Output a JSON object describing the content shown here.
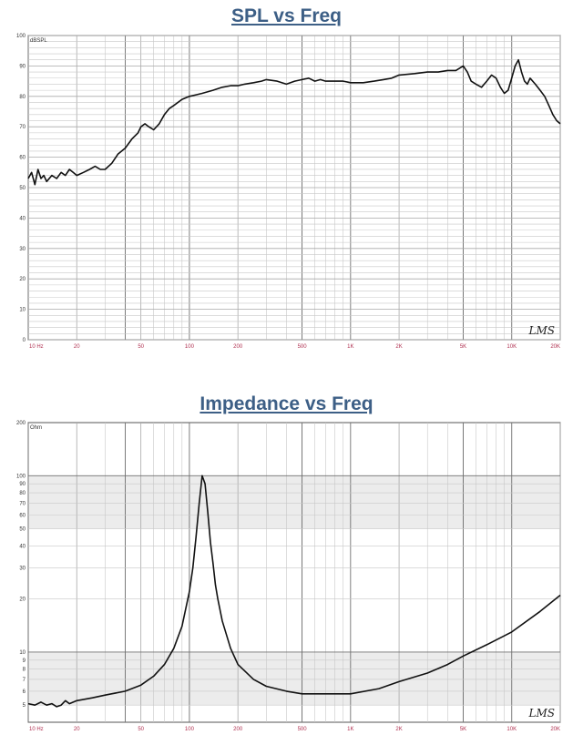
{
  "chart_data": [
    {
      "type": "line",
      "title": "SPL vs Freq",
      "ylabel": "dBSPL",
      "xlabel": "",
      "xscale": "log",
      "xlim": [
        10,
        20000
      ],
      "ylim": [
        0,
        100
      ],
      "grid": true,
      "yticks": [
        0,
        10,
        20,
        30,
        40,
        50,
        60,
        70,
        80,
        90,
        100
      ],
      "ytick_labels": [
        "0",
        "10",
        "20",
        "30",
        "40",
        "50",
        "60",
        "70",
        "80",
        "90",
        "100"
      ],
      "xticks": [
        10,
        20,
        50,
        100,
        200,
        500,
        1000,
        2000,
        5000,
        10000,
        20000
      ],
      "xtick_labels": [
        "10 Hz",
        "20",
        "50",
        "100",
        "200",
        "500",
        "1K",
        "2K",
        "5K",
        "10K",
        "20K"
      ],
      "annotation": "LMS",
      "series": [
        {
          "x": [
            10,
            10.5,
            11,
            11.5,
            12,
            12.5,
            13,
            14,
            15,
            16,
            17,
            18,
            19,
            20,
            22,
            24,
            26,
            28,
            30,
            33,
            36,
            40,
            44,
            48,
            50,
            53,
            56,
            60,
            65,
            70,
            75,
            80,
            90,
            100,
            110,
            120,
            140,
            160,
            180,
            200,
            220,
            250,
            280,
            300,
            350,
            400,
            450,
            500,
            550,
            600,
            650,
            700,
            800,
            900,
            1000,
            1200,
            1400,
            1600,
            1800,
            2000,
            2500,
            3000,
            3500,
            4000,
            4500,
            5000,
            5300,
            5600,
            6000,
            6500,
            7000,
            7500,
            8000,
            8500,
            9000,
            9500,
            10000,
            10500,
            11000,
            11500,
            12000,
            12500,
            13000,
            14000,
            15000,
            16000,
            17000,
            18000,
            19000,
            20000
          ],
          "y": [
            53,
            55,
            51,
            56,
            53,
            54,
            52,
            54,
            53,
            55,
            54,
            56,
            55,
            54,
            55,
            56,
            57,
            56,
            56,
            58,
            61,
            63,
            66,
            68,
            70,
            71,
            70,
            69,
            71,
            74,
            76,
            77,
            79,
            80,
            80.5,
            81,
            82,
            83,
            83.5,
            83.5,
            84,
            84.5,
            85,
            85.5,
            85,
            84,
            85,
            85.5,
            86,
            85,
            85.5,
            85,
            85,
            85,
            84.5,
            84.5,
            85,
            85.5,
            86,
            87,
            87.5,
            88,
            88,
            88.5,
            88.5,
            90,
            88,
            85,
            84,
            83,
            85,
            87,
            86,
            83,
            81,
            82,
            86,
            90,
            92,
            88,
            85,
            84,
            86,
            84,
            82,
            80,
            77,
            74,
            72,
            71
          ]
        }
      ]
    },
    {
      "type": "line",
      "title": "Impedance vs Freq",
      "ylabel": "Ohm",
      "xlabel": "",
      "xscale": "log",
      "yscale": "log",
      "xlim": [
        10,
        20000
      ],
      "ylim": [
        4,
        200
      ],
      "grid": true,
      "yticks": [
        5,
        6,
        7,
        8,
        9,
        10,
        20,
        30,
        40,
        50,
        60,
        70,
        80,
        90,
        100,
        200
      ],
      "ytick_labels": [
        "5",
        "6",
        "7",
        "8",
        "9",
        "10",
        "20",
        "30",
        "40",
        "50",
        "60",
        "70",
        "80",
        "90",
        "100",
        "200"
      ],
      "xticks": [
        10,
        20,
        50,
        100,
        200,
        500,
        1000,
        2000,
        5000,
        10000,
        20000
      ],
      "xtick_labels": [
        "10 Hz",
        "20",
        "50",
        "100",
        "200",
        "500",
        "1K",
        "2K",
        "5K",
        "10K",
        "20K"
      ],
      "annotation": "LMS",
      "series": [
        {
          "x": [
            10,
            11,
            12,
            13,
            14,
            15,
            16,
            17,
            18,
            20,
            25,
            30,
            40,
            50,
            60,
            70,
            80,
            90,
            100,
            105,
            110,
            115,
            120,
            125,
            130,
            135,
            140,
            145,
            150,
            160,
            180,
            200,
            250,
            300,
            400,
            500,
            600,
            700,
            800,
            1000,
            1500,
            2000,
            3000,
            4000,
            5000,
            7000,
            10000,
            15000,
            20000
          ],
          "y": [
            5.1,
            5.0,
            5.2,
            5.0,
            5.1,
            4.9,
            5.0,
            5.3,
            5.1,
            5.3,
            5.5,
            5.7,
            6.0,
            6.5,
            7.3,
            8.5,
            10.5,
            14,
            22,
            30,
            45,
            70,
            100,
            90,
            62,
            42,
            32,
            24,
            20,
            15,
            10.5,
            8.5,
            7.0,
            6.4,
            6.0,
            5.8,
            5.8,
            5.8,
            5.8,
            5.8,
            6.2,
            6.8,
            7.6,
            8.5,
            9.5,
            11,
            13,
            17,
            21
          ]
        }
      ]
    }
  ]
}
